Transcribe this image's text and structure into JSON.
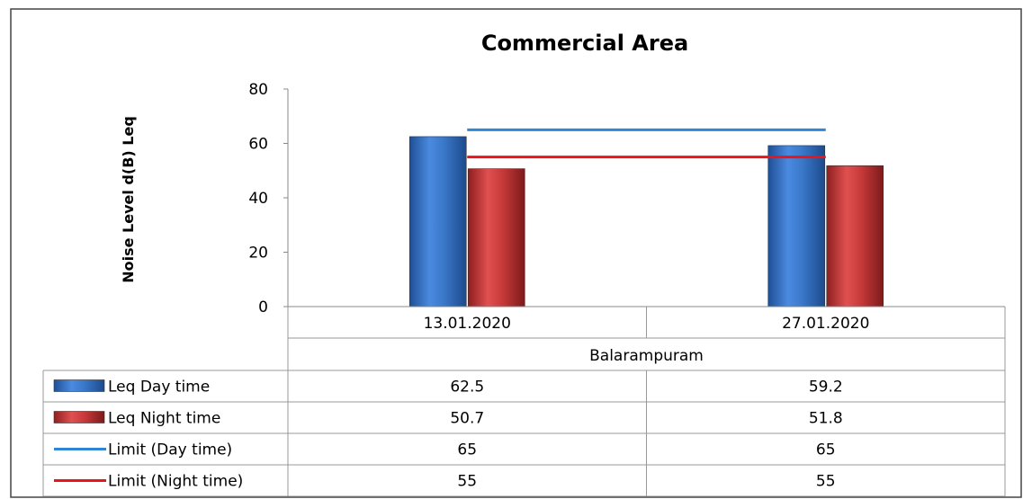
{
  "chart_data": {
    "type": "bar",
    "title": "Commercial Area",
    "ylabel": "Noise Level d(B) Leq",
    "xlabel": "",
    "group_label": "Balarampuram",
    "categories": [
      "13.01.2020",
      "27.01.2020"
    ],
    "ylim": [
      0,
      80
    ],
    "yticks": [
      0,
      20,
      40,
      60,
      80
    ],
    "grid": false,
    "series": [
      {
        "name": "Leq Day time",
        "kind": "bar",
        "color": "#3a78c9",
        "values": [
          62.5,
          59.2
        ],
        "display": [
          "62.5",
          "59.2"
        ]
      },
      {
        "name": "Leq  Night time",
        "kind": "bar",
        "color": "#c83a3a",
        "values": [
          50.7,
          51.8
        ],
        "display": [
          "50.7",
          "51.8"
        ]
      },
      {
        "name": "Limit (Day time)",
        "kind": "line",
        "color": "#2e86d4",
        "values": [
          65,
          65
        ],
        "display": [
          "65",
          "65"
        ]
      },
      {
        "name": "Limit (Night time)",
        "kind": "line",
        "color": "#e8151b",
        "values": [
          55,
          55
        ],
        "display": [
          "55",
          "55"
        ]
      }
    ],
    "legend": "data-table"
  }
}
